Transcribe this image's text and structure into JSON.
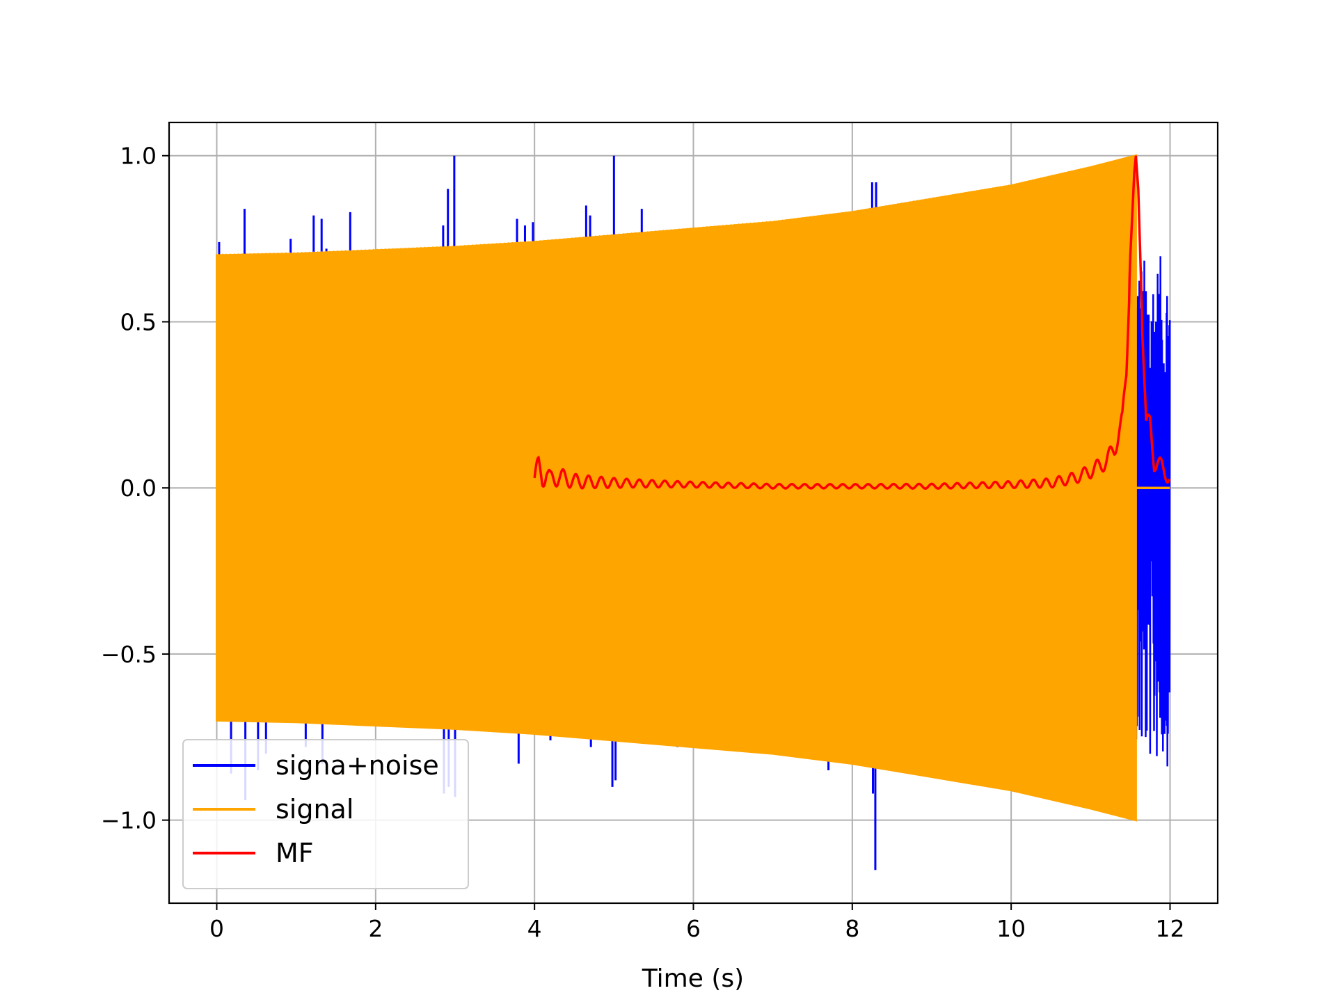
{
  "chart_data": {
    "type": "line",
    "title": "",
    "xlabel": "Time (s)",
    "ylabel": "",
    "xlim": [
      -0.6,
      12.6
    ],
    "ylim": [
      -1.25,
      1.1
    ],
    "grid": true,
    "legend_position": "lower-left",
    "x_ticks": [
      0,
      2,
      4,
      6,
      8,
      10,
      12
    ],
    "x_tick_labels": [
      "0",
      "2",
      "4",
      "6",
      "8",
      "10",
      "12"
    ],
    "y_ticks": [
      -1.0,
      -0.5,
      0.0,
      0.5,
      1.0
    ],
    "y_tick_labels": [
      "−1.0",
      "−0.5",
      "0.0",
      "0.5",
      "1.0"
    ],
    "series": [
      {
        "name": "signa+noise",
        "color": "#0000ff",
        "noise_spikes": [
          {
            "x": 0.01,
            "y": 0.57
          },
          {
            "x": 0.02,
            "y": -0.32
          },
          {
            "x": 0.03,
            "y": 0.74
          },
          {
            "x": 0.18,
            "y": -0.86
          },
          {
            "x": 0.35,
            "y": 0.84
          },
          {
            "x": 0.36,
            "y": -0.94
          },
          {
            "x": 0.52,
            "y": -0.85
          },
          {
            "x": 0.62,
            "y": -0.8
          },
          {
            "x": 0.93,
            "y": 0.75
          },
          {
            "x": 1.12,
            "y": -0.78
          },
          {
            "x": 1.22,
            "y": 0.82
          },
          {
            "x": 1.32,
            "y": 0.81
          },
          {
            "x": 1.33,
            "y": -0.83
          },
          {
            "x": 1.38,
            "y": 0.72
          },
          {
            "x": 1.68,
            "y": 0.83
          },
          {
            "x": 2.85,
            "y": 0.79
          },
          {
            "x": 2.86,
            "y": -0.92
          },
          {
            "x": 2.91,
            "y": 0.9
          },
          {
            "x": 2.92,
            "y": -0.9
          },
          {
            "x": 2.99,
            "y": 1.0
          },
          {
            "x": 3.0,
            "y": -0.93
          },
          {
            "x": 3.78,
            "y": 0.81
          },
          {
            "x": 3.8,
            "y": -0.83
          },
          {
            "x": 3.88,
            "y": 0.79
          },
          {
            "x": 3.98,
            "y": 0.8
          },
          {
            "x": 4.2,
            "y": -0.76
          },
          {
            "x": 4.65,
            "y": 0.85
          },
          {
            "x": 4.7,
            "y": 0.82
          },
          {
            "x": 4.71,
            "y": -0.78
          },
          {
            "x": 4.98,
            "y": -0.9
          },
          {
            "x": 5.0,
            "y": 1.0
          },
          {
            "x": 5.02,
            "y": -0.88
          },
          {
            "x": 5.35,
            "y": 0.84
          },
          {
            "x": 5.8,
            "y": -0.78
          },
          {
            "x": 7.7,
            "y": -0.85
          },
          {
            "x": 8.25,
            "y": 0.92
          },
          {
            "x": 8.26,
            "y": -0.92
          },
          {
            "x": 8.29,
            "y": -1.15
          },
          {
            "x": 8.3,
            "y": 0.92
          }
        ],
        "tail_x_range": [
          11.55,
          12.0
        ],
        "tail_y_range": [
          -0.84,
          0.7
        ]
      },
      {
        "name": "signal",
        "color": "#ffa500",
        "x_start": 0.0,
        "x_end": 11.57,
        "envelope_x": [
          0,
          1,
          2,
          3,
          4,
          5,
          6,
          7,
          8,
          9,
          10,
          11,
          11.57
        ],
        "envelope_amplitude": [
          0.7,
          0.705,
          0.715,
          0.725,
          0.74,
          0.76,
          0.78,
          0.8,
          0.83,
          0.87,
          0.91,
          0.965,
          1.0
        ],
        "after_end_value": 0.0,
        "after_end_x_range": [
          11.57,
          12.0
        ]
      },
      {
        "name": "MF",
        "color": "#ff0000",
        "x": [
          4.0,
          4.05,
          4.1,
          4.15,
          4.2,
          4.3,
          4.5,
          5.0,
          6.0,
          7.0,
          8.0,
          9.0,
          10.0,
          10.5,
          10.8,
          11.0,
          11.2,
          11.3,
          11.4,
          11.45,
          11.5,
          11.55,
          11.57,
          11.6,
          11.65,
          11.7,
          11.75,
          11.8,
          11.9,
          12.0
        ],
        "y": [
          0.03,
          0.06,
          0.03,
          0.05,
          0.02,
          0.035,
          0.02,
          0.015,
          0.01,
          0.005,
          0.005,
          0.005,
          0.01,
          0.015,
          0.03,
          0.05,
          0.08,
          0.12,
          0.2,
          0.35,
          0.7,
          0.95,
          1.0,
          0.9,
          0.5,
          0.18,
          0.2,
          0.08,
          0.06,
          0.03
        ],
        "ripple": true
      }
    ],
    "legend_entries": [
      "signa+noise",
      "signal",
      "MF"
    ]
  }
}
